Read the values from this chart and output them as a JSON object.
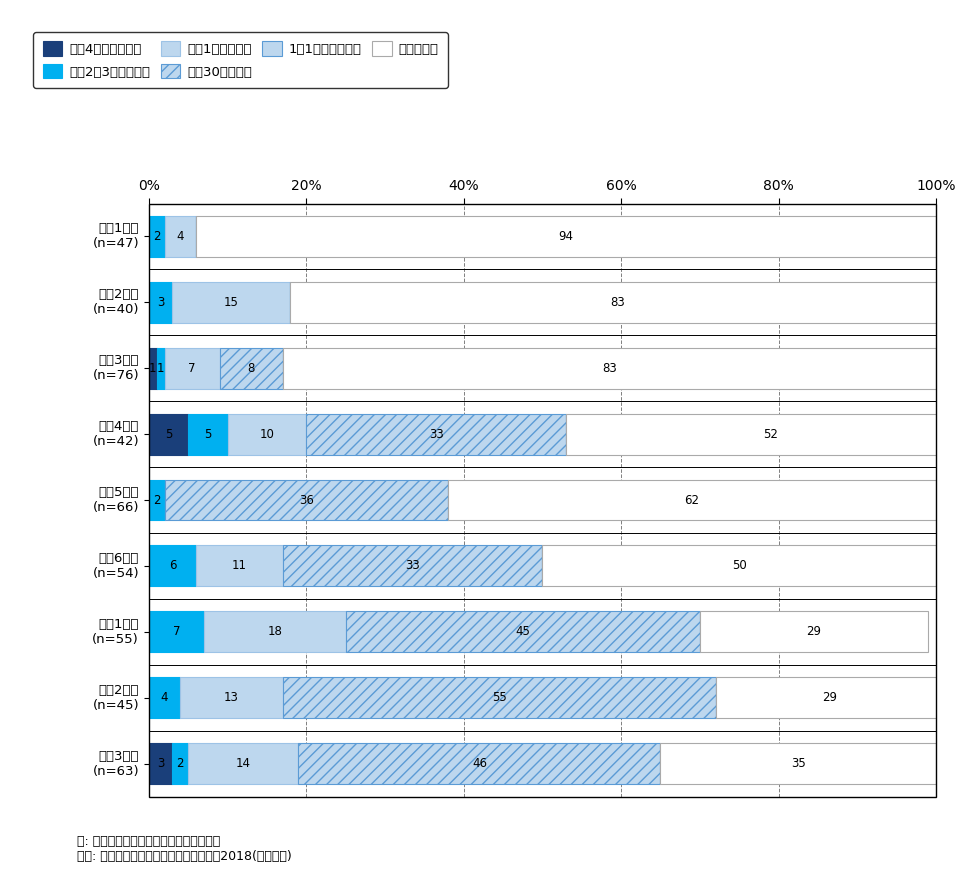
{
  "categories": [
    "小兦1年生\n(n=47)",
    "小兦2年生\n(n=40)",
    "小兦3年生\n(n=76)",
    "小兦4年生\n(n=42)",
    "小兦5年生\n(n=66)",
    "小兦6年生\n(n=54)",
    "中兦1年生\n(n=55)",
    "中兦2年生\n(n=45)",
    "中兦3年生\n(n=63)"
  ],
  "series_order": [
    "毎日4時間より多い",
    "毎日2～3時間くらい",
    "毎日1時間くらい",
    "毎日30分くらい",
    "1日1回より少ない",
    "していない"
  ],
  "series": {
    "毎日4時間より多い": [
      0,
      0,
      1,
      5,
      0,
      0,
      0,
      0,
      3
    ],
    "毎日2～3時間くらい": [
      2,
      3,
      1,
      5,
      2,
      6,
      7,
      4,
      2
    ],
    "毎日1時間くらい": [
      4,
      15,
      7,
      10,
      0,
      11,
      18,
      13,
      14
    ],
    "毎日30分くらい": [
      0,
      0,
      8,
      33,
      36,
      33,
      45,
      55,
      46
    ],
    "1日1回より少ない": [
      0,
      0,
      0,
      0,
      0,
      0,
      0,
      0,
      0
    ],
    "していない": [
      94,
      83,
      83,
      52,
      62,
      50,
      29,
      29,
      35
    ]
  },
  "color_map": {
    "毎日4時間より多い": "#1a3f7a",
    "毎日2～3時間くらい": "#00b0f0",
    "毎日1時間くらい": "#bdd7ee",
    "毎日30分くらい": "#bdd7ee",
    "1日1回より少ない": "#bdd7ee",
    "していない": "#ffffff"
  },
  "hatch_map": {
    "毎日4時間より多い": "",
    "毎日2～3時間くらい": "",
    "毎日1時間くらい": "",
    "毎日30分くらい": "///",
    "1日1回より少ない": "===",
    "していない": ""
  },
  "edgecolor_map": {
    "毎日4時間より多い": "#1a3f7a",
    "毎日2～3時間くらい": "#00b0f0",
    "毎日1時間くらい": "#9dc3e6",
    "毎日30分くらい": "#5b9bd5",
    "1日1回より少ない": "#5b9bd5",
    "していない": "#aaaaaa"
  },
  "label_color_map": {
    "毎日4時間より多い": "black",
    "毎日2～3時間くらい": "black",
    "毎日1時間くらい": "black",
    "毎日30分くらい": "black",
    "1日1回より少ない": "black",
    "していない": "black"
  },
  "legend_labels": [
    "毎日4時間より多い",
    "毎日2～3時間くらい",
    "毎日1時間くらい",
    "毎日30分くらい",
    "1日1回より少ない",
    "していない"
  ],
  "note": "注: 関東１都６県在住の小中学生が回答。\n出所: 子どものケータイ利用に関する調査2018(訪問留置)",
  "xtick_labels": [
    "0%",
    "20%",
    "40%",
    "60%",
    "80%",
    "100%"
  ]
}
